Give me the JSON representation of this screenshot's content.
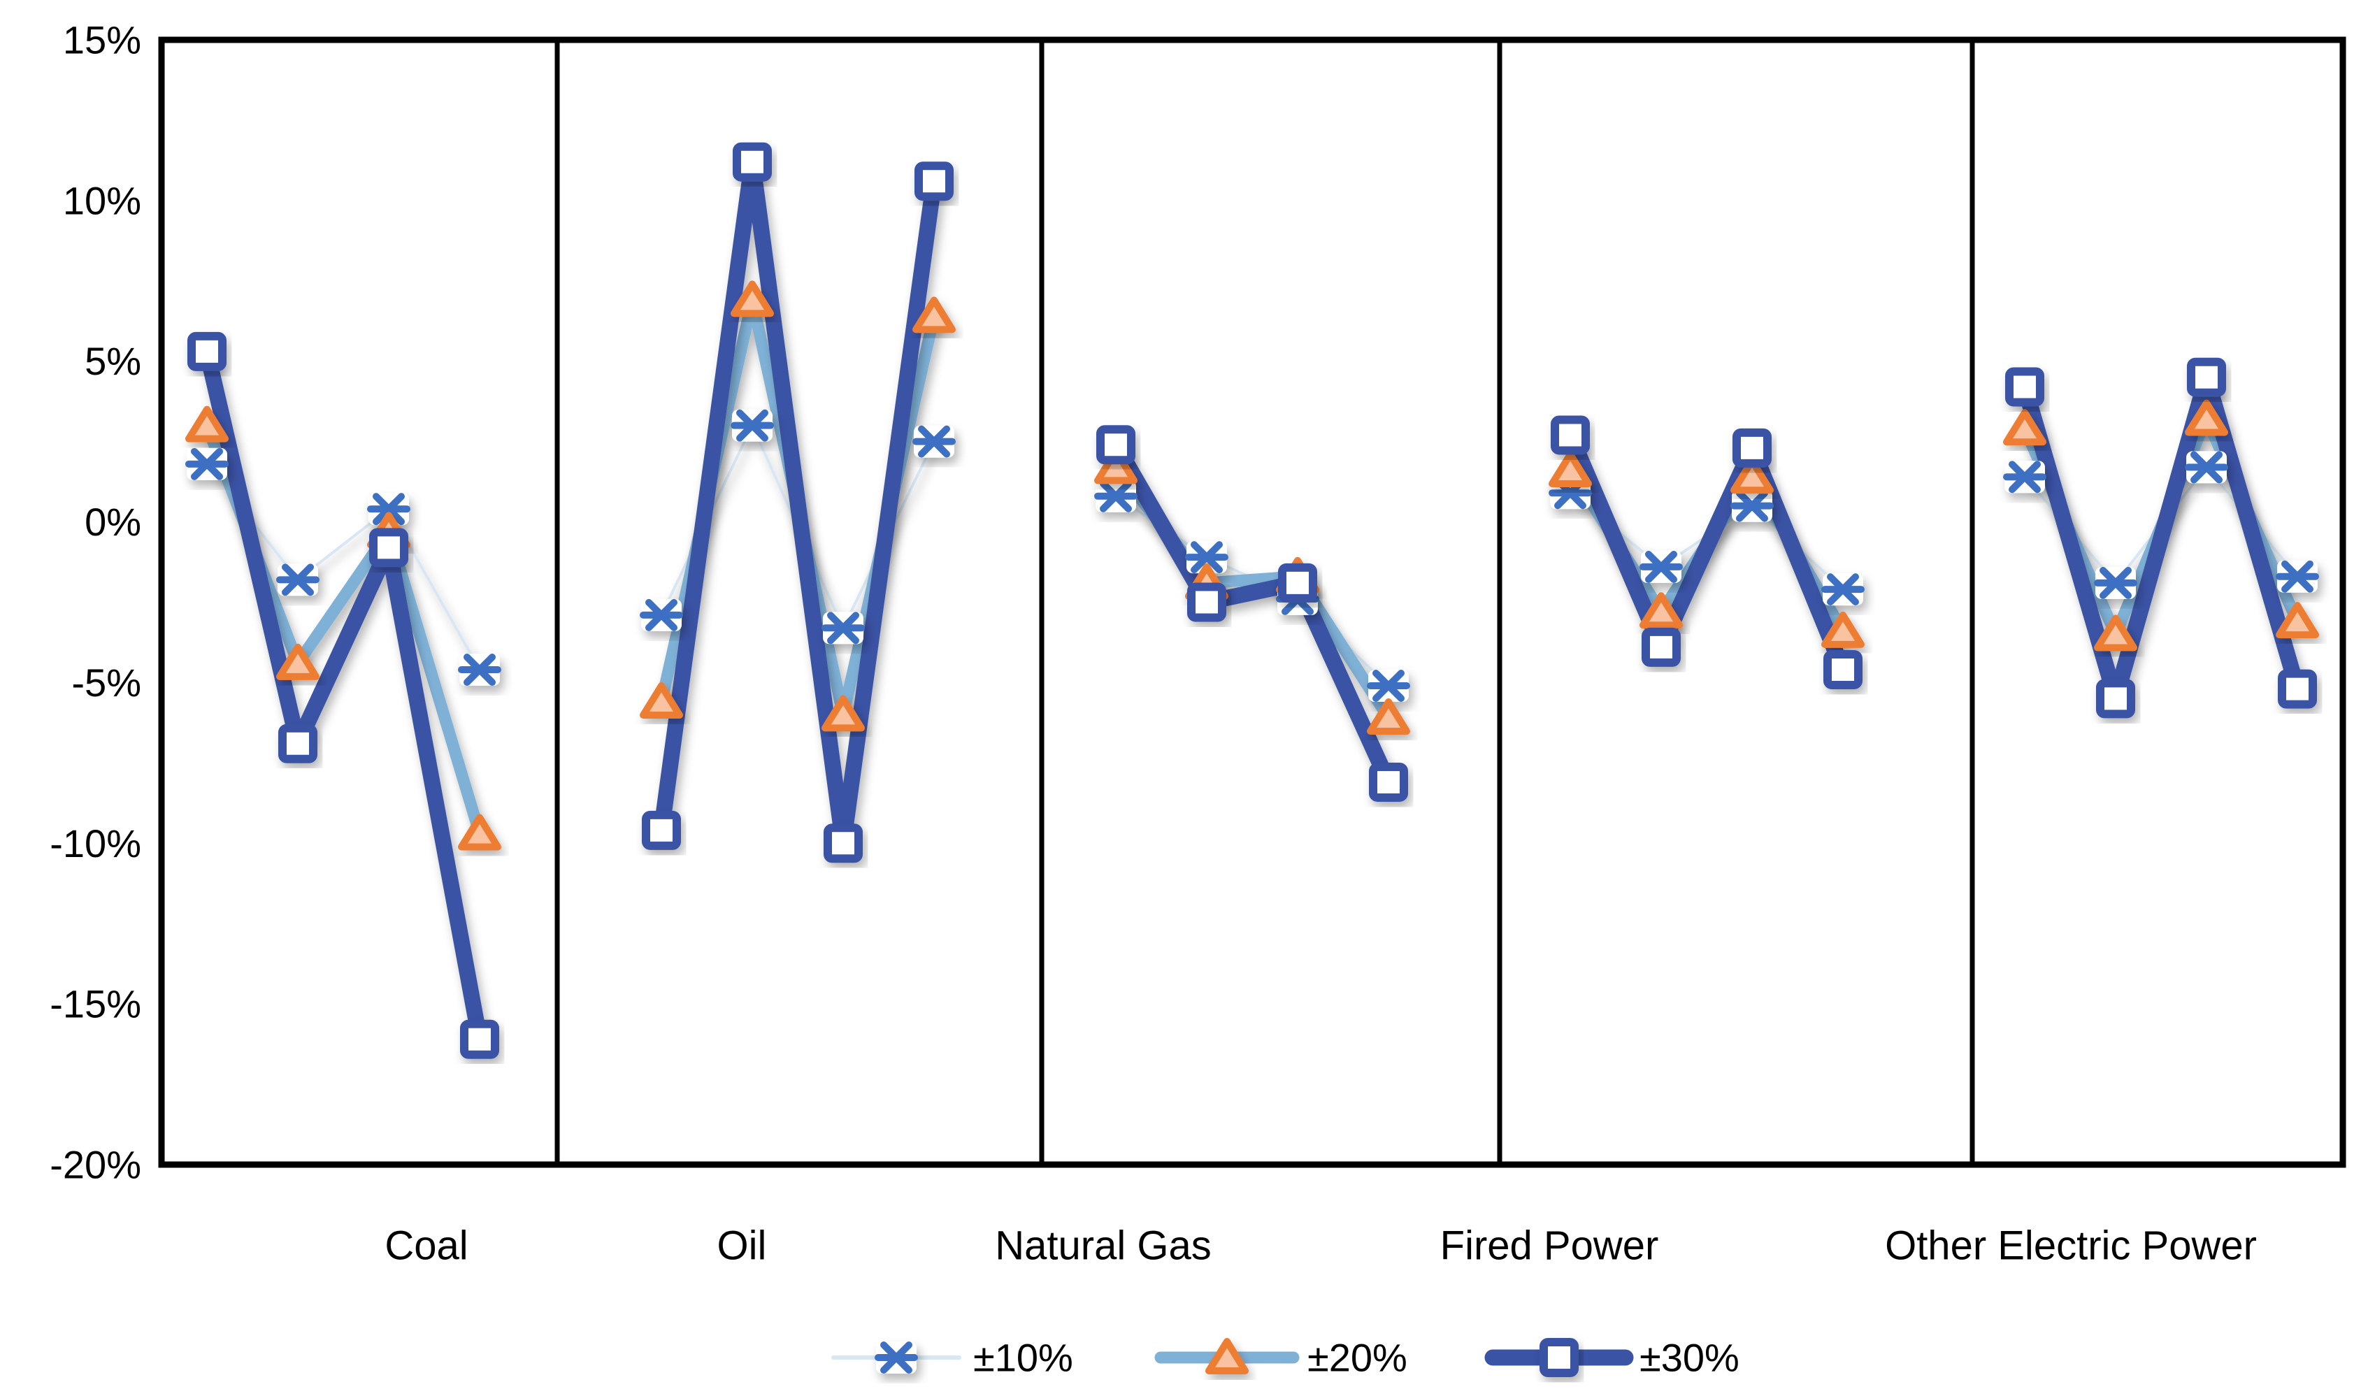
{
  "chart_data": {
    "type": "line",
    "title": "",
    "categories": [
      "Coal",
      "Oil",
      "Natural Gas",
      "Fired Power",
      "Other Electric Power"
    ],
    "points_per_category": 4,
    "y_axis": {
      "ylim": [
        -20,
        15
      ],
      "tick_values": [
        15,
        10,
        5,
        0,
        -5,
        -10,
        -15,
        -20
      ],
      "tick_labels": [
        "15%",
        "10%",
        "5%",
        "0%",
        "-5%",
        "-10%",
        "-15%",
        "-20%"
      ],
      "format": "percent",
      "grid": false
    },
    "panel_separators": true,
    "legend": {
      "position": "bottom",
      "items": [
        "±10%",
        "±20%",
        "±30%"
      ]
    },
    "series": [
      {
        "name": "±10%",
        "marker": "x-asterisk",
        "line_color": "#d8e7f3",
        "marker_color": "#3c6fc3",
        "marker_fill": "#ffffff",
        "values_by_category": [
          [
            1.8,
            -1.8,
            0.4,
            -4.6
          ],
          [
            -2.9,
            3.0,
            -3.3,
            2.5
          ],
          [
            0.8,
            -1.1,
            -2.4,
            -5.1
          ],
          [
            0.9,
            -1.4,
            0.5,
            -2.1
          ],
          [
            1.4,
            -1.9,
            1.7,
            -1.7
          ]
        ]
      },
      {
        "name": "±20%",
        "marker": "triangle",
        "line_color": "#7fb1d7",
        "marker_color": "#ed7d31",
        "marker_fill": "#f9c3a2",
        "values_by_category": [
          [
            3.0,
            -4.4,
            -0.3,
            -9.7
          ],
          [
            -5.6,
            6.9,
            -6.0,
            6.4
          ],
          [
            1.7,
            -1.9,
            -1.7,
            -6.1
          ],
          [
            1.6,
            -2.8,
            1.4,
            -3.4
          ],
          [
            2.9,
            -3.5,
            3.2,
            -3.1
          ]
        ]
      },
      {
        "name": "±30%",
        "marker": "square",
        "line_color": "#3a53a5",
        "marker_color": "#3a53a5",
        "marker_fill": "#ffffff",
        "values_by_category": [
          [
            5.3,
            -6.9,
            -0.8,
            -16.1
          ],
          [
            -9.6,
            11.2,
            -10.0,
            10.6
          ],
          [
            2.4,
            -2.5,
            -1.9,
            -8.1
          ],
          [
            2.7,
            -3.9,
            2.3,
            -4.6
          ],
          [
            4.2,
            -5.5,
            4.5,
            -5.2
          ]
        ]
      }
    ]
  }
}
